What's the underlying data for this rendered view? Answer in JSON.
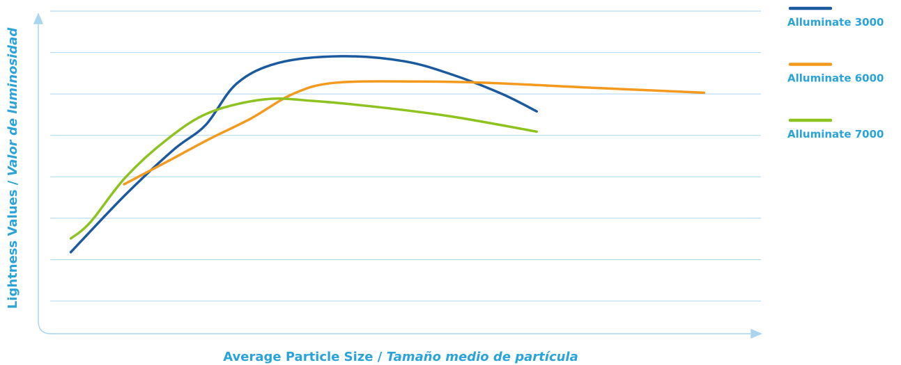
{
  "chart_data": {
    "type": "line",
    "xlabel": "Average Particle Size / ",
    "xlabel_italic": "Tamaño medio de partícula",
    "ylabel": "Lightness Values / ",
    "ylabel_italic": "Valor de luminosidad",
    "xlim": [
      0,
      10
    ],
    "ylim": [
      0,
      8
    ],
    "ygrid": [
      1,
      2,
      3,
      4,
      5,
      6,
      7,
      8
    ],
    "series": [
      {
        "name": "Alluminate 3000",
        "color": "#1b5a9f",
        "x": [
          0.45,
          1.21,
          1.88,
          2.32,
          2.75,
          3.33,
          4.2,
          5.07,
          5.75,
          6.43,
          6.91
        ],
        "values": [
          2.18,
          3.57,
          4.66,
          5.25,
          6.25,
          6.75,
          6.91,
          6.79,
          6.46,
          6.0,
          5.58
        ]
      },
      {
        "name": "Alluminate 6000",
        "color": "#f39a1e",
        "x": [
          1.19,
          1.79,
          2.37,
          2.95,
          3.53,
          4.11,
          5.27,
          6.23,
          7.68,
          9.23
        ],
        "values": [
          3.82,
          4.37,
          4.91,
          5.41,
          6.0,
          6.27,
          6.3,
          6.27,
          6.15,
          6.03
        ]
      },
      {
        "name": "Alluminate 7000",
        "color": "#8dc21f",
        "x": [
          0.45,
          0.72,
          1.21,
          1.79,
          2.37,
          3.14,
          3.82,
          4.78,
          5.75,
          6.91
        ],
        "values": [
          2.51,
          2.9,
          3.99,
          4.91,
          5.55,
          5.87,
          5.83,
          5.67,
          5.45,
          5.09
        ]
      }
    ]
  }
}
